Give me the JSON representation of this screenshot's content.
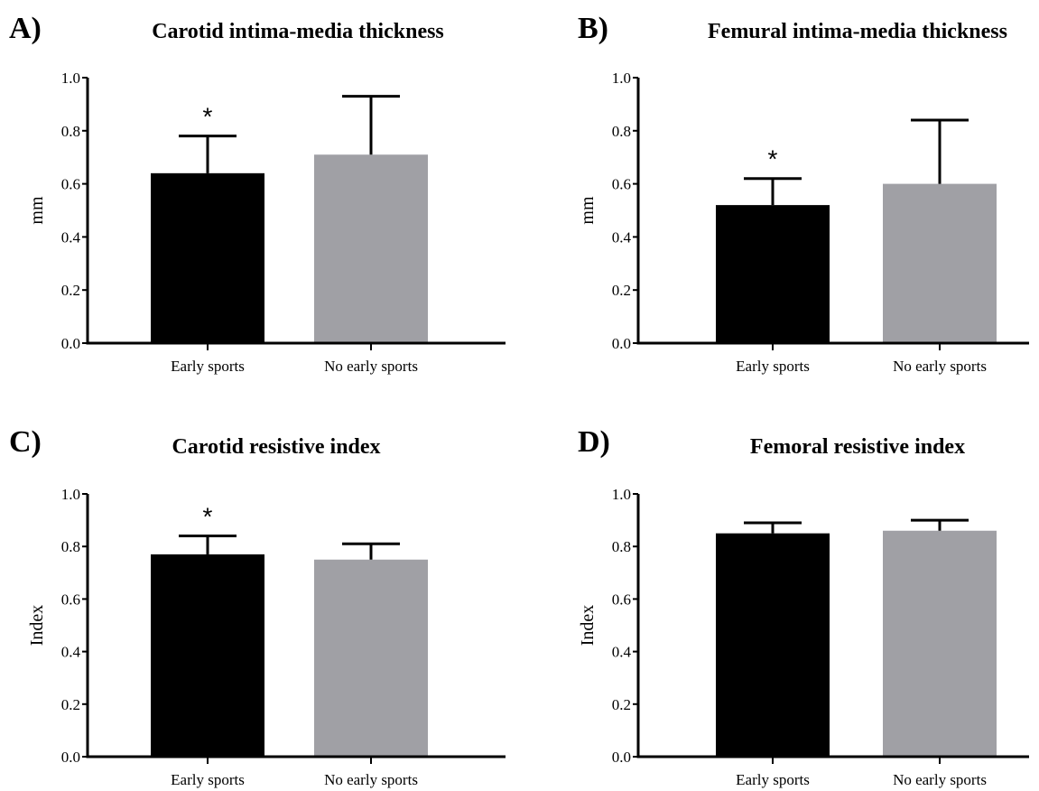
{
  "chart_data": [
    {
      "type": "bar",
      "panel": "A)",
      "title": "Carotid intima-media thickness",
      "y_label": "mm",
      "categories": [
        "Early sports",
        "No early sports"
      ],
      "values": [
        0.64,
        0.71
      ],
      "errors": [
        0.14,
        0.22
      ],
      "colors": [
        "#000000",
        "#a0a0a5"
      ],
      "annotations": [
        "*",
        null
      ],
      "ylim": [
        0,
        1
      ],
      "yticks": [
        {
          "value": 0,
          "label": "0.0"
        },
        0.2,
        0.4,
        0.6,
        0.8,
        {
          "value": 1,
          "label": "1.0"
        }
      ]
    },
    {
      "type": "bar",
      "panel": "B)",
      "title": "Femural intima-media thickness",
      "y_label": "mm",
      "categories": [
        "Early sports",
        "No early sports"
      ],
      "values": [
        0.52,
        0.6
      ],
      "errors": [
        0.1,
        0.24
      ],
      "colors": [
        "#000000",
        "#a0a0a5"
      ],
      "annotations": [
        "*",
        null
      ],
      "ylim": [
        0,
        1
      ],
      "yticks": [
        {
          "value": 0,
          "label": "0.0"
        },
        0.2,
        0.4,
        0.6,
        0.8,
        {
          "value": 1,
          "label": "1.0"
        }
      ]
    },
    {
      "type": "bar",
      "panel": "C)",
      "title": "Carotid resistive  index",
      "y_label": "Index",
      "categories": [
        "Early sports",
        "No early sports"
      ],
      "values": [
        0.77,
        0.75
      ],
      "errors": [
        0.07,
        0.06
      ],
      "colors": [
        "#000000",
        "#a0a0a5"
      ],
      "annotations": [
        "*",
        null
      ],
      "ylim": [
        0,
        1
      ],
      "yticks": [
        {
          "value": 0,
          "label": "0.0"
        },
        0.2,
        0.4,
        0.6,
        0.8,
        {
          "value": 1,
          "label": "1.0"
        }
      ]
    },
    {
      "type": "bar",
      "panel": "D)",
      "title": "Femoral resistive  index",
      "y_label": "Index",
      "categories": [
        "Early sports",
        "No early sports"
      ],
      "values": [
        0.85,
        0.86
      ],
      "errors": [
        0.04,
        0.04
      ],
      "colors": [
        "#000000",
        "#a0a0a5"
      ],
      "ylim": [
        0,
        1
      ],
      "yticks": [
        {
          "value": 0,
          "label": "0.0"
        },
        0.2,
        0.4,
        0.6,
        0.8,
        {
          "value": 1,
          "label": "1.0"
        }
      ]
    }
  ]
}
